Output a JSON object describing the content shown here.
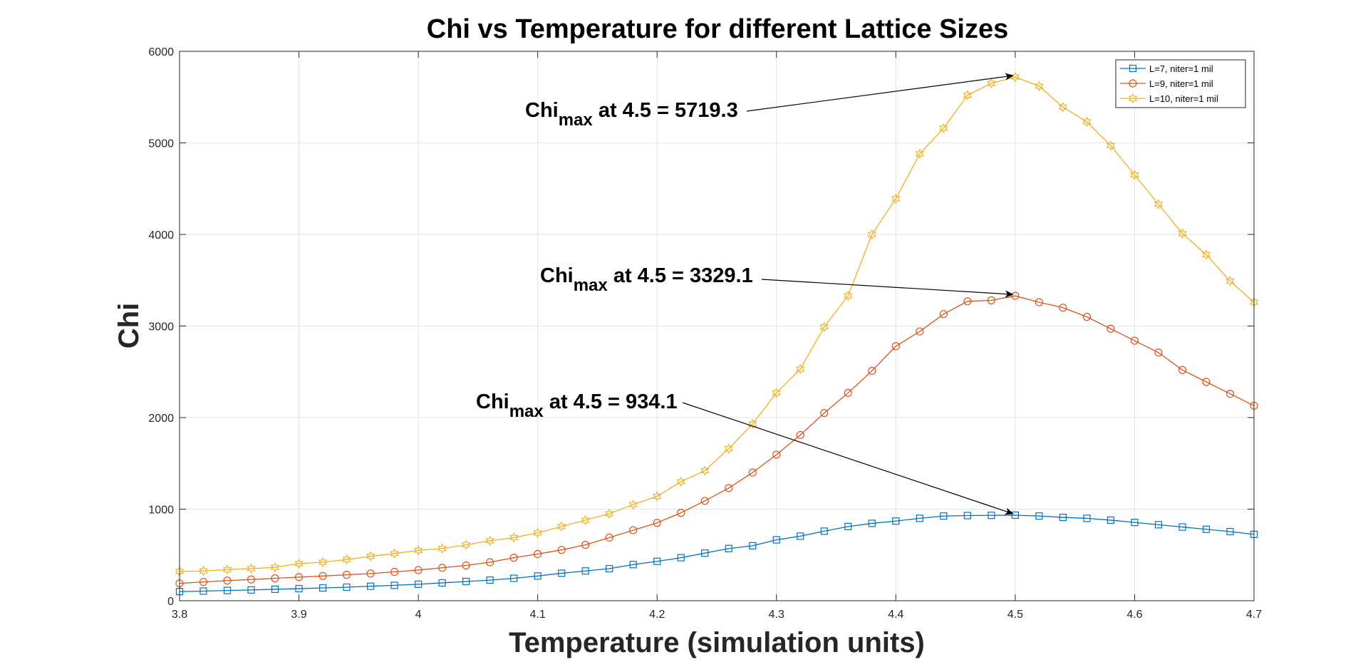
{
  "chart_data": {
    "type": "line",
    "title": "Chi vs Temperature for different Lattice Sizes",
    "xlabel": "Temperature (simulation units)",
    "ylabel": "Chi",
    "xlim": [
      3.8,
      4.7
    ],
    "ylim": [
      0,
      6000
    ],
    "xticks": [
      3.8,
      3.9,
      4.0,
      4.1,
      4.2,
      4.3,
      4.4,
      4.5,
      4.6,
      4.7
    ],
    "xtick_labels": [
      "3.8",
      "3.9",
      "4",
      "4.1",
      "4.2",
      "4.3",
      "4.4",
      "4.5",
      "4.6",
      "4.7"
    ],
    "yticks": [
      0,
      1000,
      2000,
      3000,
      4000,
      5000,
      6000
    ],
    "ytick_labels": [
      "0",
      "1000",
      "2000",
      "3000",
      "4000",
      "5000",
      "6000"
    ],
    "grid": true,
    "legend_position": "top-right",
    "x": [
      3.8,
      3.82,
      3.84,
      3.86,
      3.88,
      3.9,
      3.92,
      3.94,
      3.96,
      3.98,
      4.0,
      4.02,
      4.04,
      4.06,
      4.08,
      4.1,
      4.12,
      4.14,
      4.16,
      4.18,
      4.2,
      4.22,
      4.24,
      4.26,
      4.28,
      4.3,
      4.32,
      4.34,
      4.36,
      4.38,
      4.4,
      4.42,
      4.44,
      4.46,
      4.48,
      4.5,
      4.52,
      4.54,
      4.56,
      4.58,
      4.6,
      4.62,
      4.64,
      4.66,
      4.68,
      4.7
    ],
    "series": [
      {
        "name": "L=7, niter=1 mil",
        "color": "#0072BD",
        "marker": "square",
        "values": [
          100,
          105,
          112,
          118,
          125,
          132,
          140,
          148,
          158,
          168,
          180,
          195,
          210,
          225,
          245,
          270,
          300,
          325,
          350,
          395,
          430,
          470,
          520,
          570,
          600,
          665,
          705,
          760,
          810,
          845,
          870,
          900,
          925,
          930,
          932,
          934,
          925,
          910,
          900,
          880,
          855,
          830,
          805,
          780,
          755,
          725
        ]
      },
      {
        "name": "L=9, niter=1 mil",
        "color": "#D95319",
        "marker": "circle",
        "values": [
          190,
          205,
          220,
          232,
          245,
          258,
          270,
          283,
          297,
          315,
          335,
          360,
          385,
          420,
          470,
          510,
          555,
          610,
          690,
          770,
          850,
          960,
          1090,
          1230,
          1400,
          1595,
          1810,
          2050,
          2270,
          2510,
          2780,
          2940,
          3130,
          3270,
          3280,
          3329,
          3260,
          3200,
          3100,
          2970,
          2840,
          2710,
          2520,
          2390,
          2260,
          2130
        ]
      },
      {
        "name": "L=10, niter=1 mil",
        "color": "#EDB120",
        "marker": "hexagram",
        "values": [
          320,
          325,
          340,
          350,
          365,
          405,
          420,
          450,
          485,
          515,
          550,
          570,
          610,
          655,
          690,
          740,
          810,
          880,
          950,
          1050,
          1140,
          1300,
          1420,
          1660,
          1930,
          2270,
          2530,
          2990,
          3330,
          4000,
          4390,
          4880,
          5160,
          5520,
          5650,
          5719,
          5620,
          5390,
          5230,
          4970,
          4650,
          4330,
          4010,
          3780,
          3490,
          3260
        ]
      }
    ],
    "annotations": [
      {
        "label_main": "Chi",
        "label_sub": "max",
        "label_rest": " at 4.5 = 5719.3",
        "target_x": 4.5,
        "target_y": 5719.3,
        "series": 2
      },
      {
        "label_main": "Chi",
        "label_sub": "max",
        "label_rest": " at 4.5 = 3329.1",
        "target_x": 4.5,
        "target_y": 3329.1,
        "series": 1
      },
      {
        "label_main": "Chi",
        "label_sub": "max",
        "label_rest": " at 4.5 = 934.1",
        "target_x": 4.5,
        "target_y": 934.1,
        "series": 0
      }
    ]
  }
}
